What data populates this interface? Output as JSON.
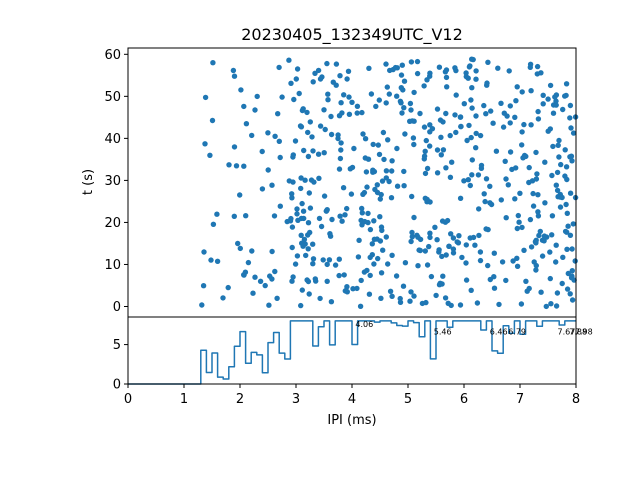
{
  "chart_data": [
    {
      "type": "scatter",
      "title": "20230405_132349UTC_V12",
      "xlabel": "",
      "ylabel": "t (s)",
      "xlim": [
        0,
        8
      ],
      "ylim": [
        61.5,
        -2.5
      ],
      "y_inverted": true,
      "xticks": [
        0,
        1,
        2,
        3,
        4,
        5,
        6,
        7,
        8
      ],
      "yticks": [
        0,
        10,
        20,
        30,
        40,
        50,
        60
      ],
      "ytick_labels": [
        "0",
        "10",
        "20",
        "30",
        "40",
        "50",
        "60"
      ],
      "marker_color": "#1f77b4",
      "grid": false
    },
    {
      "type": "line",
      "title": "",
      "xlabel": "IPI (ms)",
      "ylabel": "",
      "xlim": [
        0,
        8
      ],
      "ylim": [
        0,
        8.5
      ],
      "xticks": [
        0,
        1,
        2,
        3,
        4,
        5,
        6,
        7,
        8
      ],
      "xtick_labels": [
        "0",
        "1",
        "2",
        "3",
        "4",
        "5",
        "6",
        "7",
        "8"
      ],
      "yticks": [
        0,
        5
      ],
      "ytick_labels": [
        "0",
        "5"
      ],
      "line_color": "#1f77b4",
      "grid": false,
      "peak_annotations": [
        {
          "x": 4.06,
          "y": 7,
          "label": "4.06"
        },
        {
          "x": 5.46,
          "y": 6,
          "label": "5.46"
        },
        {
          "x": 6.46,
          "y": 6,
          "label": "6.46"
        },
        {
          "x": 6.79,
          "y": 6,
          "label": "6.79"
        },
        {
          "x": 7.67,
          "y": 6,
          "label": "7.67"
        },
        {
          "x": 7.88,
          "y": 6,
          "label": "7.88"
        },
        {
          "x": 7.98,
          "y": 6,
          "label": "7.98"
        }
      ]
    }
  ]
}
